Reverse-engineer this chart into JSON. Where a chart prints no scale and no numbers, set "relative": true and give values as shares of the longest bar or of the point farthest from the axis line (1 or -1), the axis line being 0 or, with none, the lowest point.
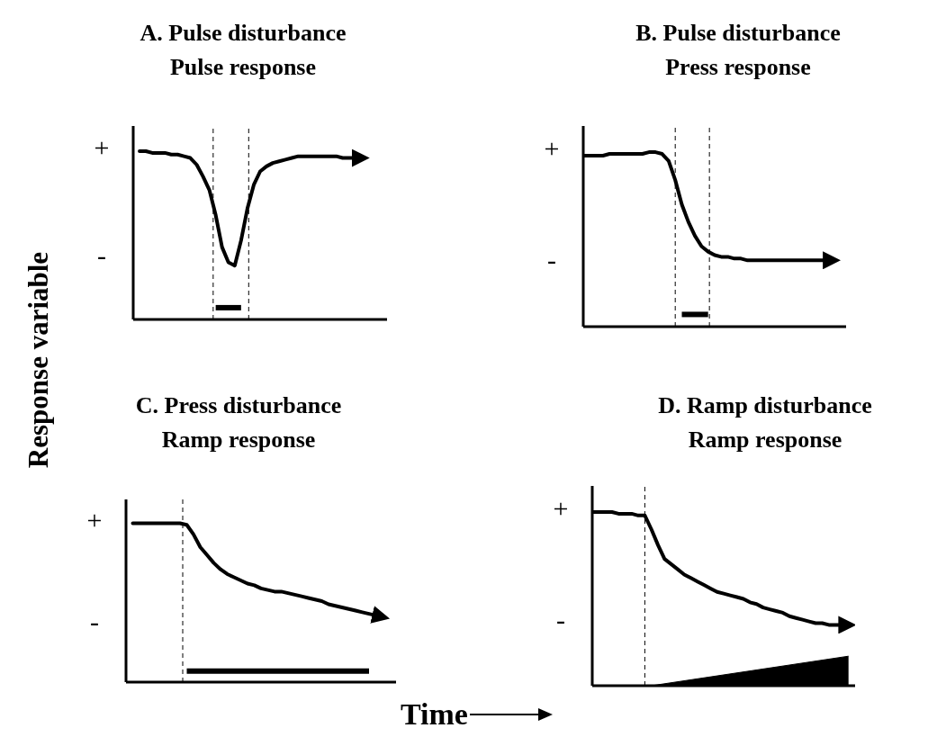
{
  "chart_data": [
    {
      "type": "line",
      "title": "A. Pulse disturbance",
      "subtitle": "Pulse response",
      "ylabel": "Response variable",
      "relative": true,
      "annotations": [
        "+",
        "-"
      ],
      "categories": [
        null,
        null,
        null,
        null,
        null,
        null,
        null,
        null,
        null,
        null,
        null,
        null,
        null,
        null,
        null,
        null,
        null,
        null,
        null,
        null,
        null,
        null,
        null,
        null,
        null,
        null,
        null,
        null,
        null,
        null,
        null,
        null,
        null,
        null,
        null,
        null,
        null,
        null,
        null,
        null,
        null
      ],
      "series": [
        {
          "color": "#000000",
          "values": [
            null,
            1.0,
            1.0,
            0.99,
            0.99,
            0.99,
            0.98,
            0.98,
            0.97,
            0.96,
            0.92,
            0.85,
            0.77,
            0.62,
            0.43,
            0.34,
            0.32,
            0.47,
            0.66,
            0.8,
            0.88,
            0.91,
            0.93,
            0.94,
            0.95,
            0.96,
            0.97,
            0.97,
            0.97,
            0.97,
            0.97,
            0.97,
            0.97,
            0.96,
            0.96,
            0.96,
            null,
            null,
            null,
            null,
            null
          ]
        },
        {
          "color": "#000000",
          "values": [
            null,
            null,
            null,
            null,
            null,
            null,
            null,
            null,
            null,
            null,
            null,
            null,
            null,
            0.07,
            0.07,
            0.07,
            0.07,
            0.07,
            null,
            null,
            null,
            null,
            null,
            null,
            null,
            null,
            null,
            null,
            null,
            null,
            null,
            null,
            null,
            null,
            null,
            null,
            null,
            null,
            null,
            null,
            null
          ]
        }
      ]
    },
    {
      "type": "line",
      "title": "B. Pulse disturbance",
      "subtitle": "Press response",
      "relative": true,
      "annotations": [
        "+",
        "-"
      ],
      "categories": [
        null,
        null,
        null,
        null,
        null,
        null,
        null,
        null,
        null,
        null,
        null,
        null,
        null,
        null,
        null,
        null,
        null,
        null,
        null,
        null,
        null,
        null,
        null,
        null,
        null,
        null,
        null,
        null,
        null,
        null,
        null,
        null,
        null,
        null,
        null,
        null,
        null,
        null,
        null,
        null,
        null
      ],
      "series": [
        {
          "color": "#000000",
          "values": [
            0.98,
            0.98,
            0.98,
            0.98,
            0.99,
            0.99,
            0.99,
            0.99,
            0.99,
            0.99,
            1.0,
            1.0,
            0.99,
            0.95,
            0.84,
            0.7,
            0.6,
            0.52,
            0.46,
            0.43,
            0.41,
            0.4,
            0.4,
            0.39,
            0.39,
            0.38,
            0.38,
            0.38,
            0.38,
            0.38,
            0.38,
            0.38,
            0.38,
            0.38,
            0.38,
            0.38,
            0.38,
            0.38,
            null,
            null,
            null
          ]
        },
        {
          "color": "#000000",
          "values": [
            null,
            null,
            null,
            null,
            null,
            null,
            null,
            null,
            null,
            null,
            null,
            null,
            null,
            null,
            null,
            0.07,
            0.07,
            0.07,
            0.07,
            0.07,
            null,
            null,
            null,
            null,
            null,
            null,
            null,
            null,
            null,
            null,
            null,
            null,
            null,
            null,
            null,
            null,
            null,
            null,
            null,
            null,
            null
          ]
        }
      ]
    },
    {
      "type": "line",
      "title": "C. Press disturbance",
      "subtitle": "Ramp response",
      "xlabel": "Time",
      "relative": true,
      "annotations": [
        "+",
        "-"
      ],
      "categories": [
        null,
        null,
        null,
        null,
        null,
        null,
        null,
        null,
        null,
        null,
        null,
        null,
        null,
        null,
        null,
        null,
        null,
        null,
        null,
        null,
        null,
        null,
        null,
        null,
        null,
        null,
        null,
        null,
        null,
        null,
        null,
        null,
        null,
        null,
        null,
        null,
        null,
        null,
        null,
        null,
        null
      ],
      "series": [
        {
          "color": "#000000",
          "values": [
            null,
            1.0,
            1.0,
            1.0,
            1.0,
            1.0,
            1.0,
            1.0,
            1.0,
            0.99,
            0.93,
            0.85,
            0.8,
            0.75,
            0.71,
            0.68,
            0.66,
            0.64,
            0.62,
            0.61,
            0.59,
            0.58,
            0.57,
            0.57,
            0.56,
            0.55,
            0.54,
            0.53,
            0.52,
            0.51,
            0.49,
            0.48,
            0.47,
            0.46,
            0.45,
            0.44,
            0.43,
            0.42,
            null,
            null,
            null
          ]
        },
        {
          "color": "#000000",
          "values": [
            null,
            null,
            null,
            null,
            null,
            null,
            null,
            null,
            null,
            0.07,
            0.07,
            0.07,
            0.07,
            0.07,
            0.07,
            0.07,
            0.07,
            0.07,
            0.07,
            0.07,
            0.07,
            0.07,
            0.07,
            0.07,
            0.07,
            0.07,
            0.07,
            0.07,
            0.07,
            0.07,
            0.07,
            0.07,
            0.07,
            0.07,
            0.07,
            0.07,
            0.07,
            null,
            null,
            null,
            null
          ]
        }
      ]
    },
    {
      "type": "line",
      "title": "D. Ramp disturbance",
      "subtitle": "Ramp response",
      "relative": true,
      "annotations": [
        "+",
        "-"
      ],
      "categories": [
        null,
        null,
        null,
        null,
        null,
        null,
        null,
        null,
        null,
        null,
        null,
        null,
        null,
        null,
        null,
        null,
        null,
        null,
        null,
        null,
        null,
        null,
        null,
        null,
        null,
        null,
        null,
        null,
        null,
        null,
        null,
        null,
        null,
        null,
        null,
        null,
        null,
        null,
        null,
        null,
        null
      ],
      "series": [
        {
          "color": "#000000",
          "values": [
            1.0,
            1.0,
            1.0,
            1.0,
            0.99,
            0.99,
            0.99,
            0.98,
            0.98,
            0.9,
            0.81,
            0.73,
            0.7,
            0.67,
            0.64,
            0.62,
            0.6,
            0.58,
            0.56,
            0.54,
            0.53,
            0.52,
            0.51,
            0.5,
            0.48,
            0.47,
            0.45,
            0.44,
            0.43,
            0.42,
            0.4,
            0.39,
            0.38,
            0.37,
            0.36,
            0.36,
            0.35,
            0.35,
            0.35,
            null,
            null
          ]
        },
        {
          "type": "area",
          "color": "#000000",
          "values": [
            null,
            null,
            null,
            null,
            null,
            null,
            null,
            null,
            null,
            0,
            null,
            null,
            null,
            null,
            null,
            null,
            null,
            null,
            null,
            null,
            null,
            null,
            null,
            null,
            null,
            null,
            null,
            null,
            null,
            null,
            null,
            null,
            null,
            null,
            null,
            null,
            null,
            null,
            null,
            0.17,
            null
          ]
        }
      ]
    }
  ]
}
